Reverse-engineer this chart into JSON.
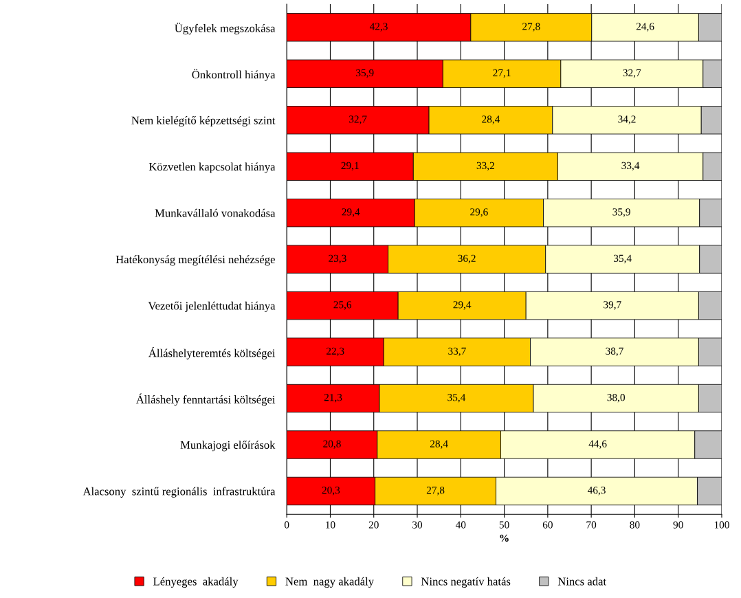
{
  "chart_data": {
    "type": "bar",
    "orientation": "horizontal",
    "stacked": true,
    "xlabel": "%",
    "categories": [
      "Ügyfelek megszokása",
      "Önkontroll hiánya",
      "Nem kielégítő képzettségi szint",
      "Közvetlen kapcsolat hiánya",
      "Munkavállaló vonakodása",
      "Hatékonyság megítélési nehézsége",
      "Vezetői jelenléttudat hiánya",
      "Álláshelyteremtés költségei",
      "Álláshely fenntartási költségei",
      "Munkajogi előírások",
      "Alacsony  szintű regionális  infrastruktúra"
    ],
    "series": [
      {
        "name": "Lényeges  akadály",
        "color": "#ff0000",
        "values": [
          42.3,
          35.9,
          32.7,
          29.1,
          29.4,
          23.3,
          25.6,
          22.3,
          21.3,
          20.8,
          20.3
        ],
        "value_labels": [
          "42,3",
          "35,9",
          "32,7",
          "29,1",
          "29,4",
          "23,3",
          "25,6",
          "22,3",
          "21,3",
          "20,8",
          "20,3"
        ]
      },
      {
        "name": "Nem  nagy akadály",
        "color": "#ffcc00",
        "values": [
          27.8,
          27.1,
          28.4,
          33.2,
          29.6,
          36.2,
          29.4,
          33.7,
          35.4,
          28.4,
          27.8
        ],
        "value_labels": [
          "27,8",
          "27,1",
          "28,4",
          "33,2",
          "29,6",
          "36,2",
          "29,4",
          "33,7",
          "35,4",
          "28,4",
          "27,8"
        ]
      },
      {
        "name": "Nincs negatív hatás",
        "color": "#ffffcc",
        "values": [
          24.6,
          32.7,
          34.2,
          33.4,
          35.9,
          35.4,
          39.7,
          38.7,
          38.0,
          44.6,
          46.3
        ],
        "value_labels": [
          "24,6",
          "32,7",
          "34,2",
          "33,4",
          "35,9",
          "35,4",
          "39,7",
          "38,7",
          "38,0",
          "44,6",
          "46,3"
        ]
      },
      {
        "name": "Nincs adat",
        "color": "#c0c0c0",
        "values": [
          5.3,
          4.3,
          4.7,
          4.3,
          5.1,
          5.1,
          5.3,
          5.3,
          5.3,
          6.2,
          5.6
        ]
      }
    ],
    "xlim": [
      0,
      100
    ],
    "xticks": [
      0,
      10,
      20,
      30,
      40,
      50,
      60,
      70,
      80,
      90,
      100
    ],
    "grid": "x",
    "legend": "bottom"
  }
}
